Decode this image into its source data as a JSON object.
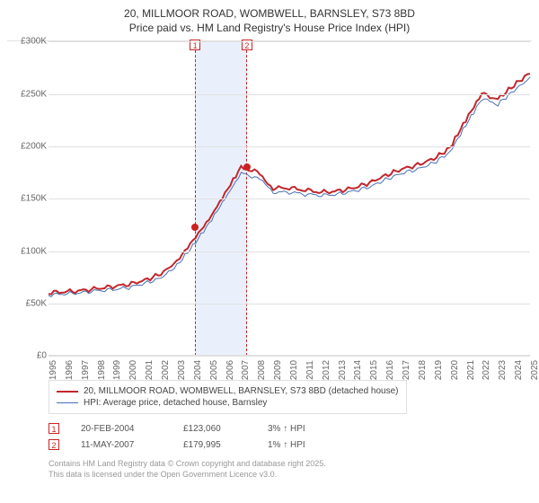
{
  "title_line1": "20, MILLMOOR ROAD, WOMBWELL, BARNSLEY, S73 8BD",
  "title_line2": "Price paid vs. HM Land Registry's House Price Index (HPI)",
  "chart": {
    "type": "line",
    "x_years": [
      1995,
      1996,
      1997,
      1998,
      1999,
      2000,
      2001,
      2002,
      2003,
      2004,
      2005,
      2006,
      2007,
      2008,
      2009,
      2010,
      2011,
      2012,
      2013,
      2014,
      2015,
      2016,
      2017,
      2018,
      2019,
      2020,
      2021,
      2022,
      2023,
      2024,
      2025
    ],
    "ylim": [
      0,
      300000
    ],
    "ytick_step": 50000,
    "ytick_labels": [
      "£0",
      "£50K",
      "£100K",
      "£150K",
      "£200K",
      "£250K",
      "£300K"
    ],
    "grid_color": "#e0e0e0",
    "background_color": "#ffffff",
    "series": [
      {
        "name": "price_paid",
        "label": "20, MILLMOOR ROAD, WOMBWELL, BARNSLEY, S73 8BD (detached house)",
        "color": "#c1272d",
        "width": 2,
        "values": [
          60000,
          61000,
          62000,
          64000,
          66000,
          68000,
          72000,
          78000,
          90000,
          110000,
          130000,
          155000,
          180000,
          175000,
          160000,
          160000,
          158000,
          156000,
          157000,
          160000,
          165000,
          172000,
          178000,
          182000,
          188000,
          198000,
          225000,
          250000,
          245000,
          258000,
          270000
        ]
      },
      {
        "name": "hpi",
        "label": "HPI: Average price, detached house, Barnsley",
        "color": "#4a6fb3",
        "width": 1,
        "values": [
          58000,
          59000,
          60000,
          62000,
          63000,
          65000,
          69000,
          74000,
          86000,
          105000,
          126000,
          150000,
          174000,
          170000,
          156000,
          156000,
          154000,
          153000,
          154000,
          157000,
          161000,
          168000,
          174000,
          178000,
          184000,
          194000,
          220000,
          245000,
          240000,
          253000,
          265000
        ]
      }
    ],
    "highlight_band": {
      "x_start_year": 2004.13,
      "x_end_year": 2007.36,
      "fill": "#eaf0fb",
      "dash_color": "#c1272d"
    },
    "sales": [
      {
        "num": "1",
        "year": 2004.13,
        "value": 123060
      },
      {
        "num": "2",
        "year": 2007.36,
        "value": 179995
      }
    ]
  },
  "legend": {
    "series0": "20, MILLMOOR ROAD, WOMBWELL, BARNSLEY, S73 8BD (detached house)",
    "series1": "HPI: Average price, detached house, Barnsley"
  },
  "sales_table": [
    {
      "num": "1",
      "date": "20-FEB-2004",
      "price": "£123,060",
      "delta": "3% ↑ HPI"
    },
    {
      "num": "2",
      "date": "11-MAY-2007",
      "price": "£179,995",
      "delta": "1% ↑ HPI"
    }
  ],
  "attribution": {
    "line1": "Contains HM Land Registry data © Crown copyright and database right 2025.",
    "line2": "This data is licensed under the Open Government Licence v3.0."
  }
}
